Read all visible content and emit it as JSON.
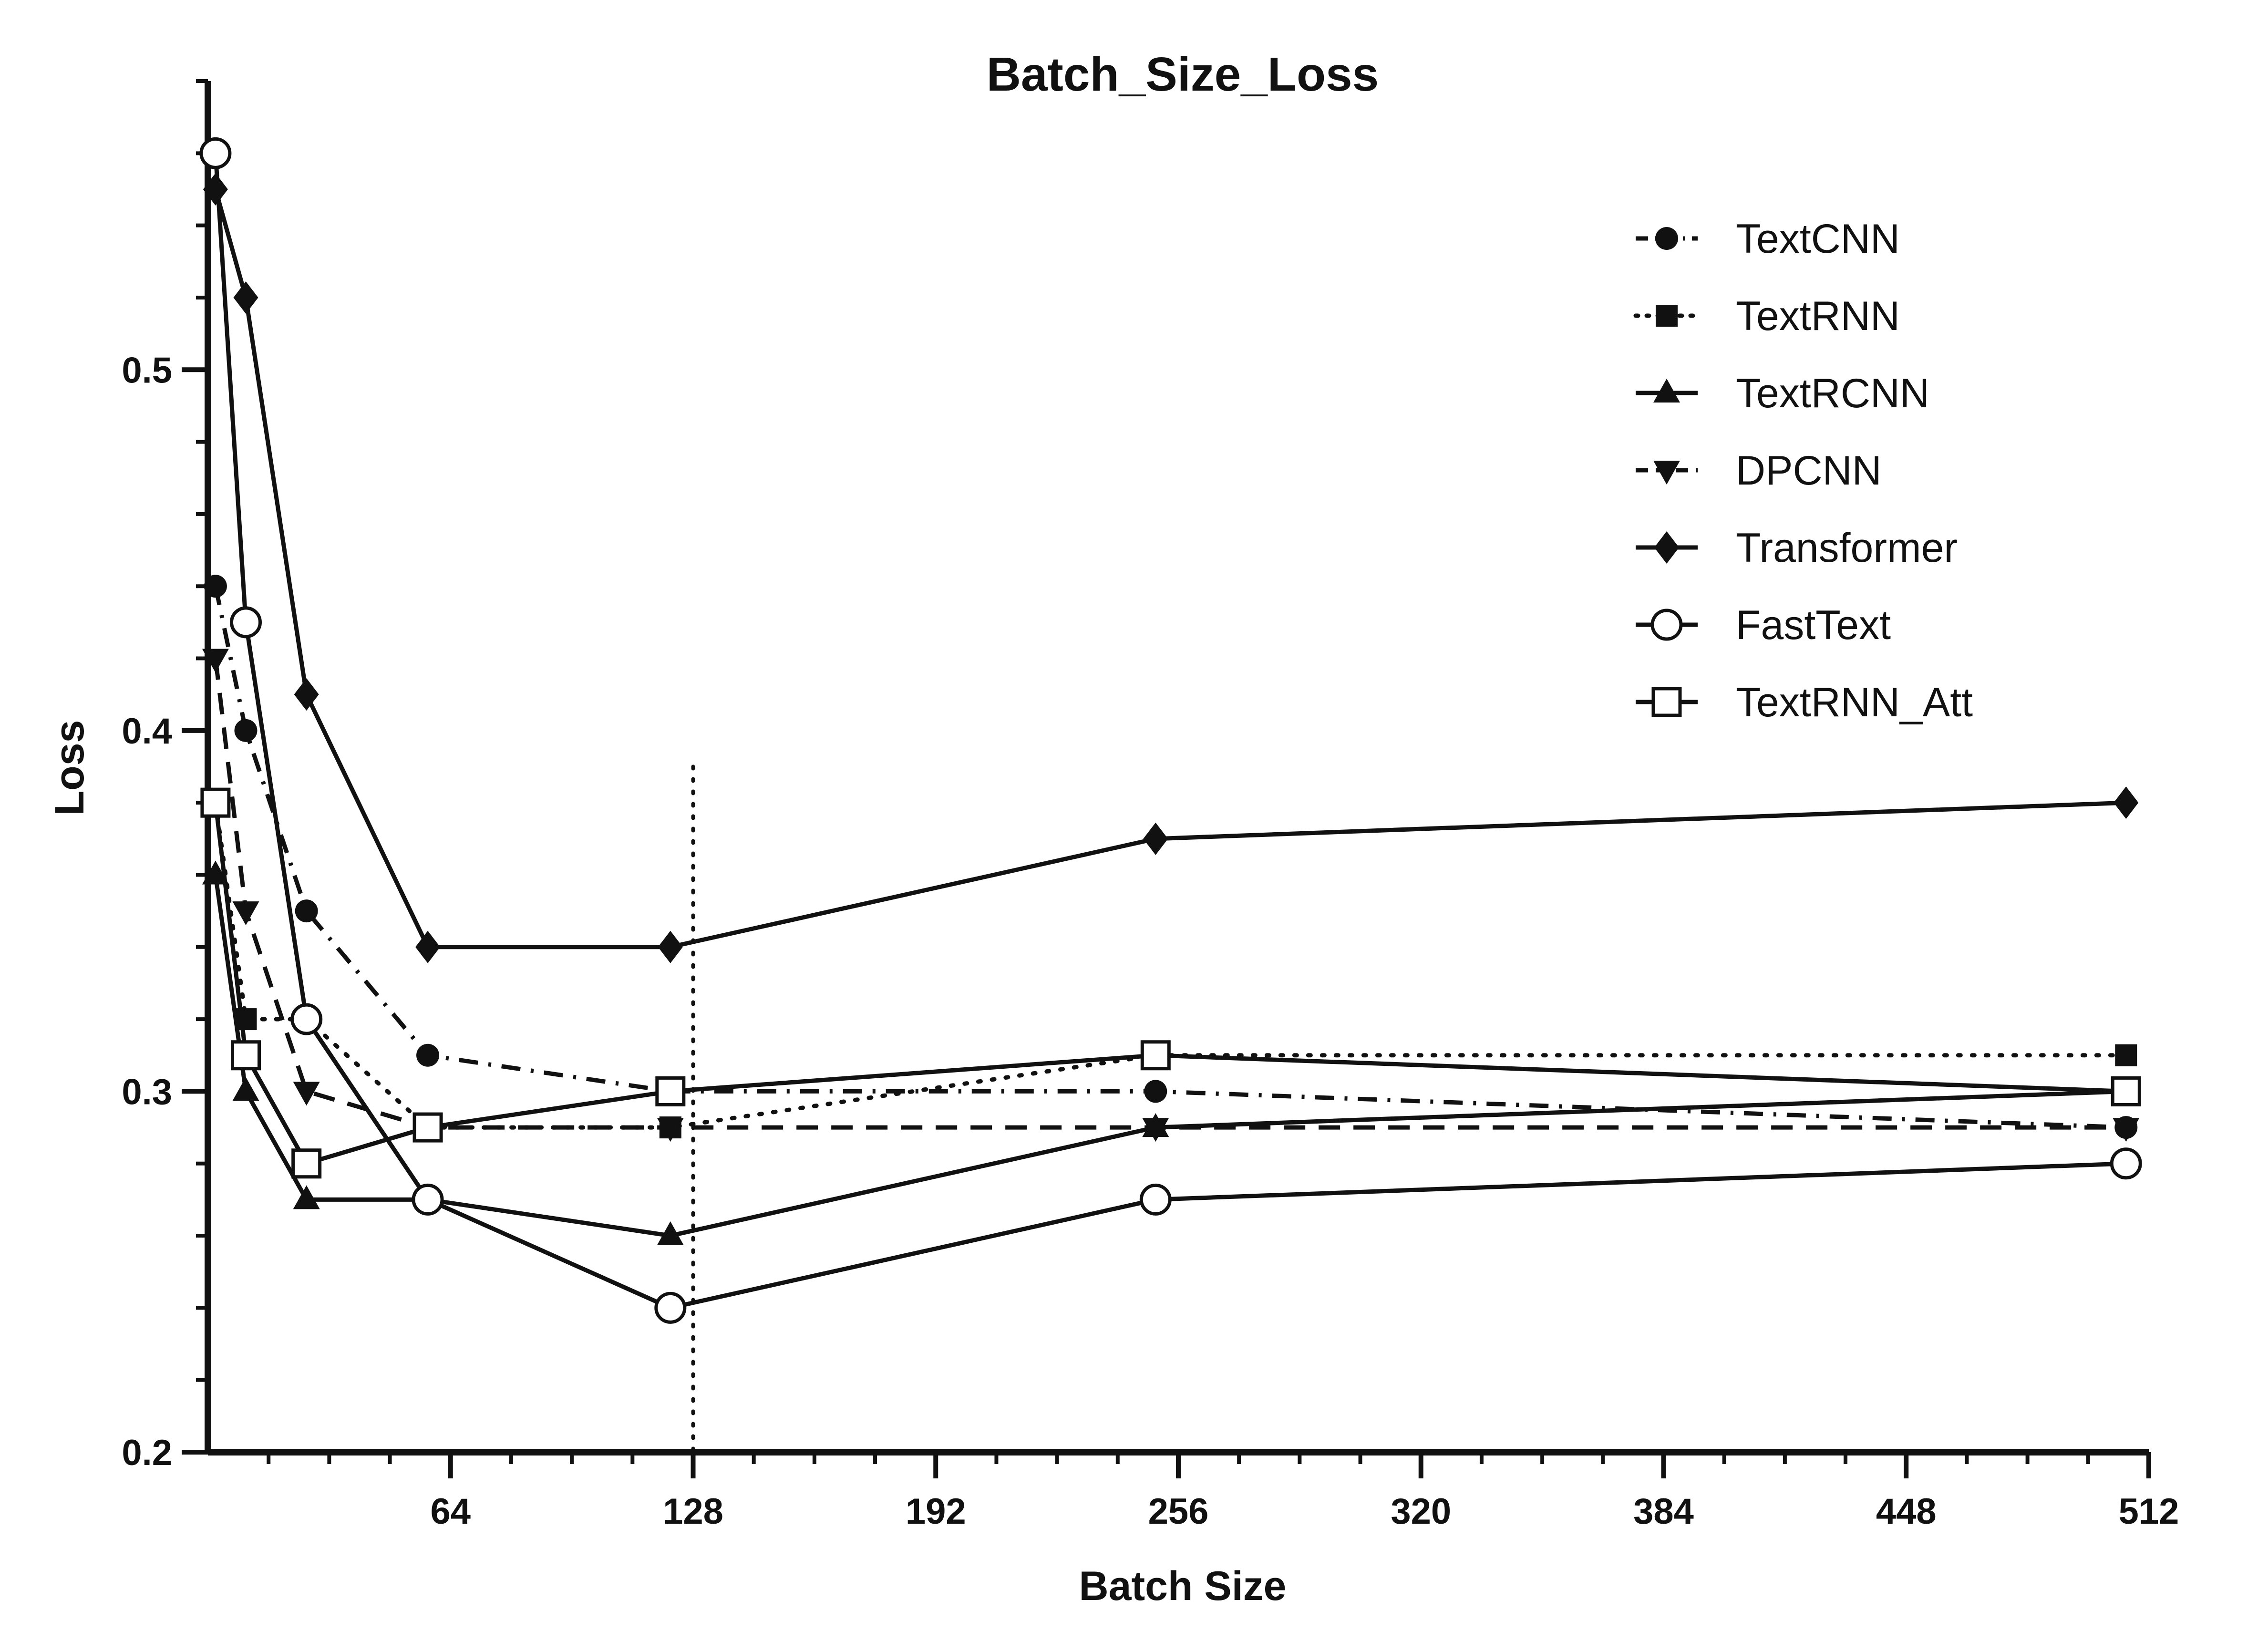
{
  "chart_data": {
    "type": "line",
    "title": "Batch_Size_Loss",
    "xlabel": "Batch Size",
    "ylabel": "Loss",
    "xlim": [
      0,
      512
    ],
    "ylim": [
      0.2,
      0.58
    ],
    "x_ticks": [
      64,
      128,
      192,
      256,
      320,
      384,
      448,
      512
    ],
    "y_ticks": [
      0.2,
      0.3,
      0.4,
      0.5
    ],
    "y_tick_labels": [
      "0.2",
      "0.3",
      "0.4",
      "0.5"
    ],
    "x_minor_step": 16,
    "y_minor_step": 0.02,
    "reference_line": {
      "x": 128,
      "style": "dotted"
    },
    "legend_position": "top-right",
    "grid": false,
    "x": [
      2,
      10,
      26,
      58,
      122,
      250,
      506
    ],
    "series": [
      {
        "name": "TextCNN",
        "marker": "circle-filled",
        "dash": "dash-dot",
        "values": [
          0.44,
          0.4,
          0.35,
          0.31,
          0.3,
          0.3,
          0.29
        ]
      },
      {
        "name": "TextRNN",
        "marker": "square-filled",
        "dash": "dotted",
        "values": [
          0.38,
          0.32,
          0.32,
          0.29,
          0.29,
          0.31,
          0.31
        ]
      },
      {
        "name": "TextRCNN",
        "marker": "triangle-up-filled",
        "dash": "solid",
        "values": [
          0.36,
          0.3,
          0.27,
          0.27,
          0.26,
          0.29,
          0.3
        ]
      },
      {
        "name": "DPCNN",
        "marker": "triangle-down-filled",
        "dash": "dashed",
        "values": [
          0.42,
          0.35,
          0.3,
          0.29,
          0.29,
          0.29,
          0.29
        ]
      },
      {
        "name": "Transformer",
        "marker": "diamond-filled",
        "dash": "solid",
        "values": [
          0.55,
          0.52,
          0.41,
          0.34,
          0.34,
          0.37,
          0.38
        ]
      },
      {
        "name": "FastText",
        "marker": "circle-open",
        "dash": "solid",
        "values": [
          0.56,
          0.43,
          0.32,
          0.27,
          0.24,
          0.27,
          0.28
        ]
      },
      {
        "name": "TextRNN_Att",
        "marker": "square-open",
        "dash": "solid",
        "values": [
          0.38,
          0.31,
          0.28,
          0.29,
          0.3,
          0.31,
          0.3
        ]
      }
    ]
  }
}
